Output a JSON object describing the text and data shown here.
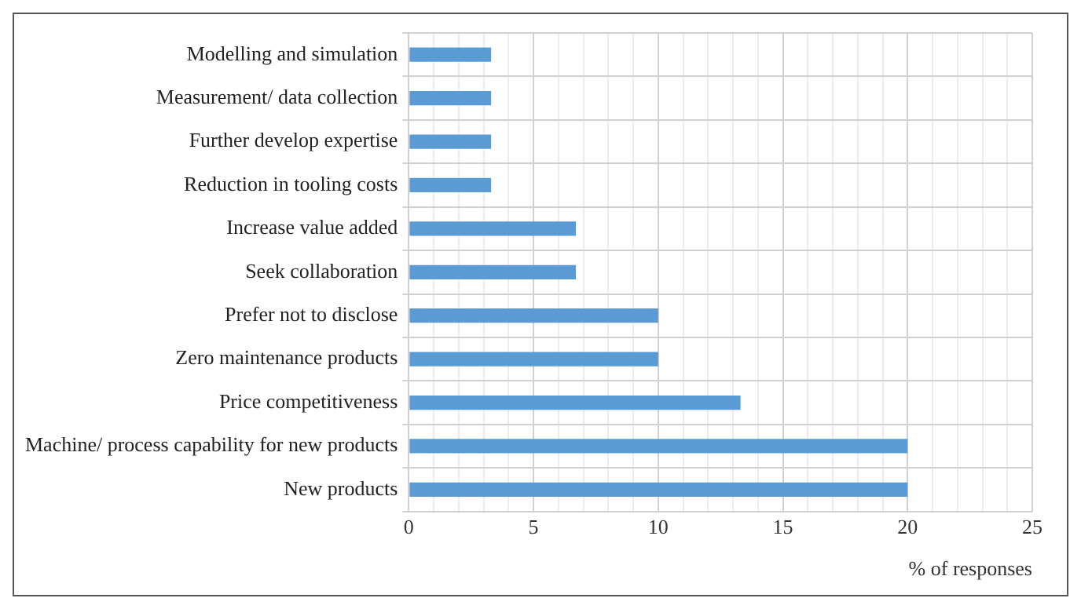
{
  "chart_data": {
    "type": "bar",
    "orientation": "horizontal",
    "xlabel": "% of responses",
    "categories": [
      "Modelling and simulation",
      "Measurement/ data collection",
      "Further develop expertise",
      "Reduction in tooling costs",
      "Increase value added",
      "Seek collaboration",
      "Prefer not to disclose",
      "Zero maintenance products",
      "Price competitiveness",
      "Machine/ process capability for new products",
      "New products"
    ],
    "values": [
      3.3,
      3.3,
      3.3,
      3.3,
      6.7,
      6.7,
      10,
      10,
      13.3,
      20,
      20
    ],
    "color": "#5b9bd5",
    "xlim": [
      0,
      25
    ],
    "xticks": [
      0,
      {
        "value": 1,
        "label": null
      },
      {
        "value": 2,
        "label": null
      },
      {
        "value": 3,
        "label": null
      },
      {
        "value": 4,
        "label": null
      },
      5,
      {
        "value": 6,
        "label": null
      },
      {
        "value": 7,
        "label": null
      },
      {
        "value": 8,
        "label": null
      },
      {
        "value": 9,
        "label": null
      },
      10,
      {
        "value": 11,
        "label": null
      },
      {
        "value": 12,
        "label": null
      },
      {
        "value": 13,
        "label": null
      },
      {
        "value": 14,
        "label": null
      },
      15,
      {
        "value": 16,
        "label": null
      },
      {
        "value": 17,
        "label": null
      },
      {
        "value": 18,
        "label": null
      },
      {
        "value": 19,
        "label": null
      },
      20,
      {
        "value": 21,
        "label": null
      },
      {
        "value": 22,
        "label": null
      },
      {
        "value": 23,
        "label": null
      },
      {
        "value": 24,
        "label": null
      },
      25
    ],
    "grid": true,
    "legend": false
  }
}
